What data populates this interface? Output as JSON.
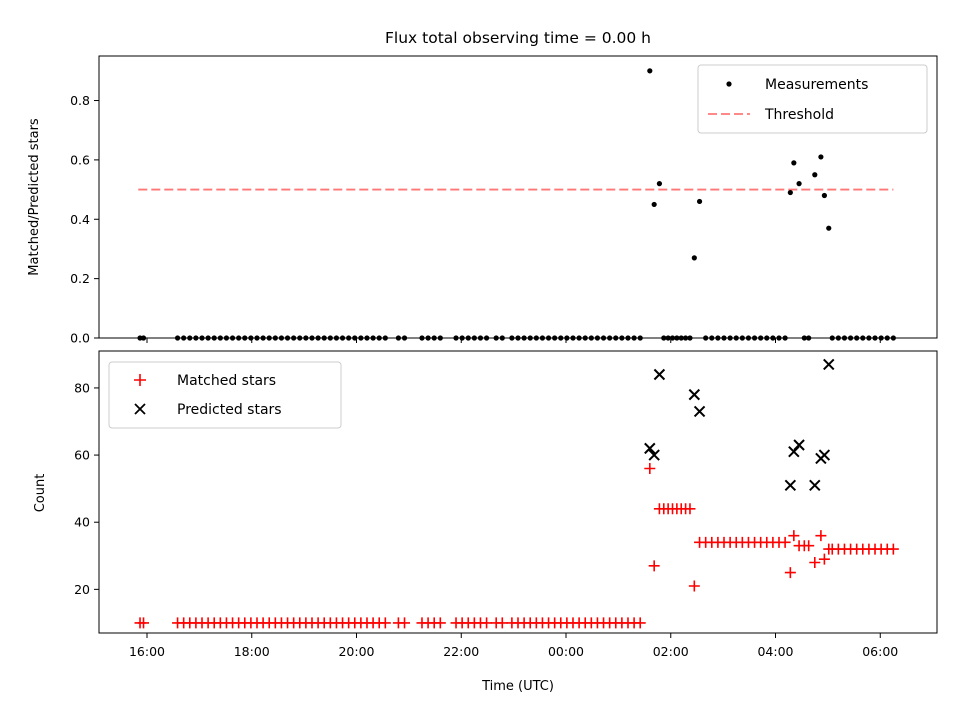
{
  "chart_data": [
    {
      "type": "scatter",
      "title": "Flux total observing time = 0.00 h",
      "xlabel": "",
      "ylabel": "Matched/Predicted stars",
      "ylim": [
        0,
        0.95
      ],
      "yticks": [
        "0.0",
        "0.2",
        "0.4",
        "0.6",
        "0.8"
      ],
      "legend_position": "upper right",
      "legend": [
        "Measurements",
        "Threshold"
      ],
      "threshold": {
        "name": "Threshold",
        "value": 0.5,
        "x_start": "15:50",
        "x_end": "06:15",
        "color": "#ff7777"
      },
      "series": [
        {
          "name": "Measurements",
          "marker": "dot",
          "color": "#000000",
          "points": [
            [
              "15:52",
              0.0
            ],
            [
              "15:56",
              0.0
            ],
            [
              "16:35",
              0.0
            ],
            [
              "16:42",
              0.0
            ],
            [
              "16:49",
              0.0
            ],
            [
              "16:56",
              0.0
            ],
            [
              "17:03",
              0.0
            ],
            [
              "17:10",
              0.0
            ],
            [
              "17:17",
              0.0
            ],
            [
              "17:24",
              0.0
            ],
            [
              "17:31",
              0.0
            ],
            [
              "17:38",
              0.0
            ],
            [
              "17:45",
              0.0
            ],
            [
              "17:52",
              0.0
            ],
            [
              "17:59",
              0.0
            ],
            [
              "18:06",
              0.0
            ],
            [
              "18:13",
              0.0
            ],
            [
              "18:20",
              0.0
            ],
            [
              "18:27",
              0.0
            ],
            [
              "18:34",
              0.0
            ],
            [
              "18:41",
              0.0
            ],
            [
              "18:48",
              0.0
            ],
            [
              "18:55",
              0.0
            ],
            [
              "19:02",
              0.0
            ],
            [
              "19:09",
              0.0
            ],
            [
              "19:16",
              0.0
            ],
            [
              "19:23",
              0.0
            ],
            [
              "19:30",
              0.0
            ],
            [
              "19:37",
              0.0
            ],
            [
              "19:44",
              0.0
            ],
            [
              "19:51",
              0.0
            ],
            [
              "19:58",
              0.0
            ],
            [
              "20:05",
              0.0
            ],
            [
              "20:12",
              0.0
            ],
            [
              "20:19",
              0.0
            ],
            [
              "20:26",
              0.0
            ],
            [
              "20:33",
              0.0
            ],
            [
              "20:48",
              0.0
            ],
            [
              "20:55",
              0.0
            ],
            [
              "21:15",
              0.0
            ],
            [
              "21:22",
              0.0
            ],
            [
              "21:29",
              0.0
            ],
            [
              "21:36",
              0.0
            ],
            [
              "21:54",
              0.0
            ],
            [
              "22:01",
              0.0
            ],
            [
              "22:08",
              0.0
            ],
            [
              "22:15",
              0.0
            ],
            [
              "22:22",
              0.0
            ],
            [
              "22:29",
              0.0
            ],
            [
              "22:40",
              0.0
            ],
            [
              "22:47",
              0.0
            ],
            [
              "22:58",
              0.0
            ],
            [
              "23:05",
              0.0
            ],
            [
              "23:12",
              0.0
            ],
            [
              "23:19",
              0.0
            ],
            [
              "23:26",
              0.0
            ],
            [
              "23:33",
              0.0
            ],
            [
              "23:40",
              0.0
            ],
            [
              "23:47",
              0.0
            ],
            [
              "23:54",
              0.0
            ],
            [
              "00:01",
              0.0
            ],
            [
              "00:08",
              0.0
            ],
            [
              "00:15",
              0.0
            ],
            [
              "00:22",
              0.0
            ],
            [
              "00:29",
              0.0
            ],
            [
              "00:36",
              0.0
            ],
            [
              "00:43",
              0.0
            ],
            [
              "00:50",
              0.0
            ],
            [
              "00:57",
              0.0
            ],
            [
              "01:04",
              0.0
            ],
            [
              "01:11",
              0.0
            ],
            [
              "01:18",
              0.0
            ],
            [
              "01:25",
              0.0
            ],
            [
              "01:36",
              0.9
            ],
            [
              "01:41",
              0.45
            ],
            [
              "01:47",
              0.52
            ],
            [
              "01:52",
              0.0
            ],
            [
              "01:57",
              0.0
            ],
            [
              "02:02",
              0.0
            ],
            [
              "02:07",
              0.0
            ],
            [
              "02:12",
              0.0
            ],
            [
              "02:17",
              0.0
            ],
            [
              "02:22",
              0.0
            ],
            [
              "02:27",
              0.27
            ],
            [
              "02:33",
              0.46
            ],
            [
              "02:40",
              0.0
            ],
            [
              "02:47",
              0.0
            ],
            [
              "02:54",
              0.0
            ],
            [
              "03:01",
              0.0
            ],
            [
              "03:08",
              0.0
            ],
            [
              "03:15",
              0.0
            ],
            [
              "03:22",
              0.0
            ],
            [
              "03:29",
              0.0
            ],
            [
              "03:36",
              0.0
            ],
            [
              "03:43",
              0.0
            ],
            [
              "03:50",
              0.0
            ],
            [
              "03:57",
              0.0
            ],
            [
              "04:04",
              0.0
            ],
            [
              "04:11",
              0.0
            ],
            [
              "04:17",
              0.49
            ],
            [
              "04:21",
              0.59
            ],
            [
              "04:27",
              0.52
            ],
            [
              "04:33",
              0.0
            ],
            [
              "04:38",
              0.0
            ],
            [
              "04:45",
              0.55
            ],
            [
              "04:52",
              0.61
            ],
            [
              "04:56",
              0.48
            ],
            [
              "05:01",
              0.37
            ],
            [
              "05:05",
              0.0
            ],
            [
              "05:12",
              0.0
            ],
            [
              "05:19",
              0.0
            ],
            [
              "05:26",
              0.0
            ],
            [
              "05:33",
              0.0
            ],
            [
              "05:40",
              0.0
            ],
            [
              "05:47",
              0.0
            ],
            [
              "05:54",
              0.0
            ],
            [
              "06:01",
              0.0
            ],
            [
              "06:08",
              0.0
            ],
            [
              "06:15",
              0.0
            ]
          ]
        }
      ]
    },
    {
      "type": "scatter",
      "title": "",
      "xlabel": "Time (UTC)",
      "ylabel": "Count",
      "ylim": [
        7,
        91
      ],
      "yticks": [
        "20",
        "40",
        "60",
        "80"
      ],
      "xticks": [
        "16:00",
        "18:00",
        "20:00",
        "22:00",
        "00:00",
        "02:00",
        "04:00",
        "06:00"
      ],
      "x_range": [
        "15:05",
        "07:05"
      ],
      "legend_position": "upper left",
      "legend": [
        "Matched stars",
        "Predicted stars"
      ],
      "series": [
        {
          "name": "Matched stars",
          "marker": "plus",
          "color": "#ff0000",
          "points": [
            [
              "15:52",
              10
            ],
            [
              "15:56",
              10
            ],
            [
              "16:35",
              10
            ],
            [
              "16:42",
              10
            ],
            [
              "16:49",
              10
            ],
            [
              "16:56",
              10
            ],
            [
              "17:03",
              10
            ],
            [
              "17:10",
              10
            ],
            [
              "17:17",
              10
            ],
            [
              "17:24",
              10
            ],
            [
              "17:31",
              10
            ],
            [
              "17:38",
              10
            ],
            [
              "17:45",
              10
            ],
            [
              "17:52",
              10
            ],
            [
              "17:59",
              10
            ],
            [
              "18:06",
              10
            ],
            [
              "18:13",
              10
            ],
            [
              "18:20",
              10
            ],
            [
              "18:27",
              10
            ],
            [
              "18:34",
              10
            ],
            [
              "18:41",
              10
            ],
            [
              "18:48",
              10
            ],
            [
              "18:55",
              10
            ],
            [
              "19:02",
              10
            ],
            [
              "19:09",
              10
            ],
            [
              "19:16",
              10
            ],
            [
              "19:23",
              10
            ],
            [
              "19:30",
              10
            ],
            [
              "19:37",
              10
            ],
            [
              "19:44",
              10
            ],
            [
              "19:51",
              10
            ],
            [
              "19:58",
              10
            ],
            [
              "20:05",
              10
            ],
            [
              "20:12",
              10
            ],
            [
              "20:19",
              10
            ],
            [
              "20:26",
              10
            ],
            [
              "20:33",
              10
            ],
            [
              "20:48",
              10
            ],
            [
              "20:55",
              10
            ],
            [
              "21:15",
              10
            ],
            [
              "21:22",
              10
            ],
            [
              "21:29",
              10
            ],
            [
              "21:36",
              10
            ],
            [
              "21:54",
              10
            ],
            [
              "22:01",
              10
            ],
            [
              "22:08",
              10
            ],
            [
              "22:15",
              10
            ],
            [
              "22:22",
              10
            ],
            [
              "22:29",
              10
            ],
            [
              "22:40",
              10
            ],
            [
              "22:47",
              10
            ],
            [
              "22:58",
              10
            ],
            [
              "23:05",
              10
            ],
            [
              "23:12",
              10
            ],
            [
              "23:19",
              10
            ],
            [
              "23:26",
              10
            ],
            [
              "23:33",
              10
            ],
            [
              "23:40",
              10
            ],
            [
              "23:47",
              10
            ],
            [
              "23:54",
              10
            ],
            [
              "00:01",
              10
            ],
            [
              "00:08",
              10
            ],
            [
              "00:15",
              10
            ],
            [
              "00:22",
              10
            ],
            [
              "00:29",
              10
            ],
            [
              "00:36",
              10
            ],
            [
              "00:43",
              10
            ],
            [
              "00:50",
              10
            ],
            [
              "00:57",
              10
            ],
            [
              "01:04",
              10
            ],
            [
              "01:11",
              10
            ],
            [
              "01:18",
              10
            ],
            [
              "01:25",
              10
            ],
            [
              "01:36",
              56
            ],
            [
              "01:41",
              27
            ],
            [
              "01:47",
              44
            ],
            [
              "01:52",
              44
            ],
            [
              "01:57",
              44
            ],
            [
              "02:02",
              44
            ],
            [
              "02:07",
              44
            ],
            [
              "02:12",
              44
            ],
            [
              "02:17",
              44
            ],
            [
              "02:22",
              44
            ],
            [
              "02:27",
              21
            ],
            [
              "02:33",
              34
            ],
            [
              "02:40",
              34
            ],
            [
              "02:47",
              34
            ],
            [
              "02:54",
              34
            ],
            [
              "03:01",
              34
            ],
            [
              "03:08",
              34
            ],
            [
              "03:15",
              34
            ],
            [
              "03:22",
              34
            ],
            [
              "03:29",
              34
            ],
            [
              "03:36",
              34
            ],
            [
              "03:43",
              34
            ],
            [
              "03:50",
              34
            ],
            [
              "03:57",
              34
            ],
            [
              "04:04",
              34
            ],
            [
              "04:11",
              34
            ],
            [
              "04:17",
              25
            ],
            [
              "04:21",
              36
            ],
            [
              "04:27",
              33
            ],
            [
              "04:33",
              33
            ],
            [
              "04:38",
              33
            ],
            [
              "04:45",
              28
            ],
            [
              "04:52",
              36
            ],
            [
              "04:56",
              29
            ],
            [
              "05:01",
              32
            ],
            [
              "05:05",
              32
            ],
            [
              "05:12",
              32
            ],
            [
              "05:19",
              32
            ],
            [
              "05:26",
              32
            ],
            [
              "05:33",
              32
            ],
            [
              "05:40",
              32
            ],
            [
              "05:47",
              32
            ],
            [
              "05:54",
              32
            ],
            [
              "06:01",
              32
            ],
            [
              "06:08",
              32
            ],
            [
              "06:15",
              32
            ]
          ]
        },
        {
          "name": "Predicted stars",
          "marker": "x",
          "color": "#000000",
          "points": [
            [
              "01:36",
              62
            ],
            [
              "01:41",
              60
            ],
            [
              "01:47",
              84
            ],
            [
              "02:27",
              78
            ],
            [
              "02:33",
              73
            ],
            [
              "04:17",
              51
            ],
            [
              "04:21",
              61
            ],
            [
              "04:27",
              63
            ],
            [
              "04:45",
              51
            ],
            [
              "04:52",
              59
            ],
            [
              "04:56",
              60
            ],
            [
              "05:01",
              87
            ]
          ]
        }
      ]
    }
  ]
}
